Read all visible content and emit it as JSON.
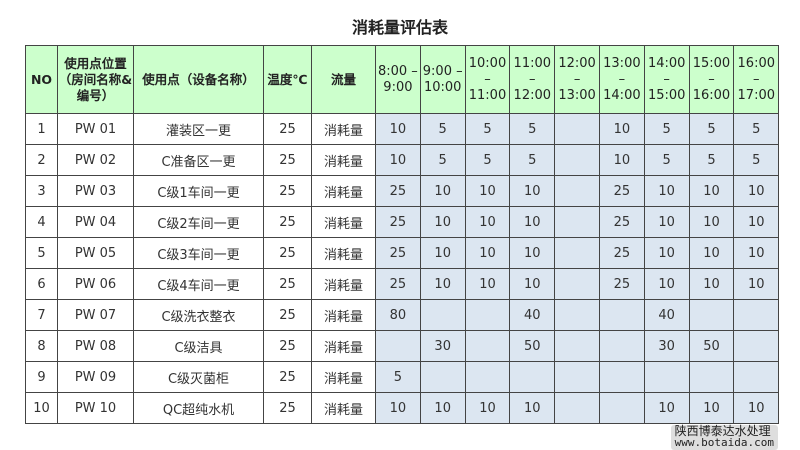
{
  "title": "消耗量评估表",
  "headers": [
    "NO",
    "使用点位置（房间名称&编号）",
    "使用点（设备名称）",
    "温度℃",
    "流量"
  ],
  "time_headers": [
    "8:00 – 9:00",
    "9:00 – 10:00",
    "10:00 – 11:00",
    "11:00 – 12:00",
    "12:00 – 13:00",
    "13:00 – 14:00",
    "14:00 – 15:00",
    "15:00 – 16:00",
    "16:00 – 17:00"
  ],
  "rows": [
    {
      "no": "1",
      "loc": "PW 01",
      "name": "灌装区一更",
      "temp": "25",
      "flow": "消耗量",
      "v": [
        "10",
        "5",
        "5",
        "5",
        "",
        "10",
        "5",
        "5",
        "5"
      ]
    },
    {
      "no": "2",
      "loc": "PW 02",
      "name": "C准备区一更",
      "temp": "25",
      "flow": "消耗量",
      "v": [
        "10",
        "5",
        "5",
        "5",
        "",
        "10",
        "5",
        "5",
        "5"
      ]
    },
    {
      "no": "3",
      "loc": "PW 03",
      "name": "C级1车间一更",
      "temp": "25",
      "flow": "消耗量",
      "v": [
        "25",
        "10",
        "10",
        "10",
        "",
        "25",
        "10",
        "10",
        "10"
      ]
    },
    {
      "no": "4",
      "loc": "PW 04",
      "name": "C级2车间一更",
      "temp": "25",
      "flow": "消耗量",
      "v": [
        "25",
        "10",
        "10",
        "10",
        "",
        "25",
        "10",
        "10",
        "10"
      ]
    },
    {
      "no": "5",
      "loc": "PW 05",
      "name": "C级3车间一更",
      "temp": "25",
      "flow": "消耗量",
      "v": [
        "25",
        "10",
        "10",
        "10",
        "",
        "25",
        "10",
        "10",
        "10"
      ]
    },
    {
      "no": "6",
      "loc": "PW 06",
      "name": "C级4车间一更",
      "temp": "25",
      "flow": "消耗量",
      "v": [
        "25",
        "10",
        "10",
        "10",
        "",
        "25",
        "10",
        "10",
        "10"
      ]
    },
    {
      "no": "7",
      "loc": "PW 07",
      "name": "C级洗衣整衣",
      "temp": "25",
      "flow": "消耗量",
      "v": [
        "80",
        "",
        "",
        "40",
        "",
        "",
        "40",
        "",
        ""
      ]
    },
    {
      "no": "8",
      "loc": "PW 08",
      "name": "C级洁具",
      "temp": "25",
      "flow": "消耗量",
      "v": [
        "",
        "30",
        "",
        "50",
        "",
        "",
        "30",
        "50",
        ""
      ]
    },
    {
      "no": "9",
      "loc": "PW 09",
      "name": "C级灭菌柜",
      "temp": "25",
      "flow": "消耗量",
      "v": [
        "5",
        "",
        "",
        "",
        "",
        "",
        "",
        "",
        ""
      ]
    },
    {
      "no": "10",
      "loc": "PW 10",
      "name": "QC超纯水机",
      "temp": "25",
      "flow": "消耗量",
      "v": [
        "10",
        "10",
        "10",
        "10",
        "",
        "",
        "10",
        "10",
        "10"
      ]
    }
  ],
  "watermark": {
    "line1": "陕西博泰达水处理",
    "line2": "www.botaida.com"
  },
  "colors": {
    "header_bg": "#ccffcc",
    "value_bg": "#dce6f1"
  }
}
